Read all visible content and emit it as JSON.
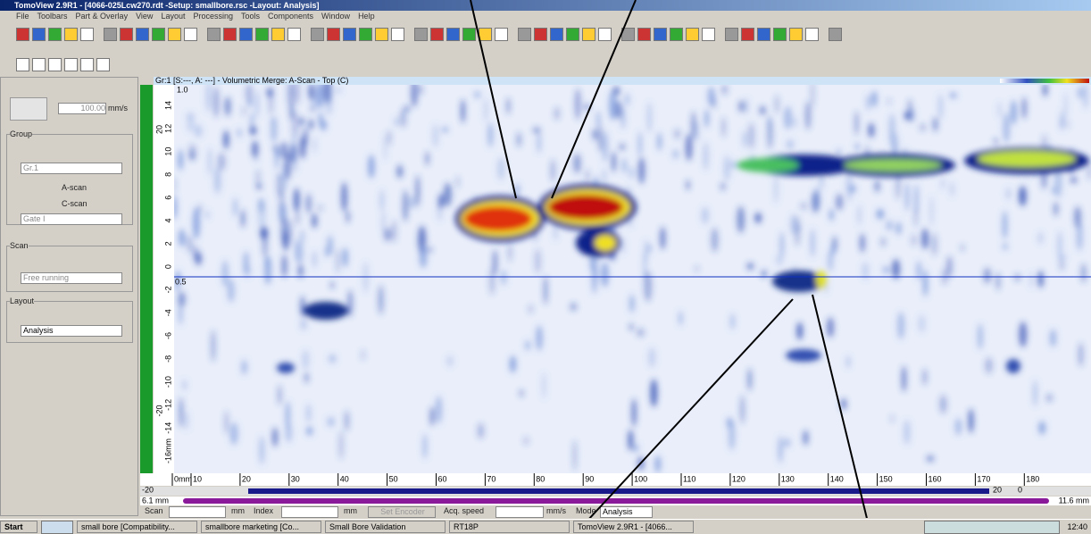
{
  "window": {
    "title": "TomoView 2.9R1 - [4066-025Lcw270.rdt -Setup: smallbore.rsc -Layout: Analysis]"
  },
  "menu": [
    "File",
    "Toolbars",
    "Part & Overlay",
    "View",
    "Layout",
    "Processing",
    "Tools",
    "Components",
    "Window",
    "Help"
  ],
  "left_panel": {
    "speed": "100.00",
    "speed_unit": "mm/s",
    "group_title": "Group",
    "group": "Gr.1",
    "a_scan": "A-scan",
    "c_scan": "C-scan",
    "gate": "Gate I",
    "scan_title": "Scan",
    "scan_mode": "Free running",
    "layout_title": "Layout",
    "layout": "Analysis"
  },
  "view": {
    "title": "Gr:1 [S:---, A: ---] - Volumetric Merge: A-Scan - Top (C)",
    "top_marker": "1.0",
    "cursor_marker": "0.5",
    "left_ruler": [
      "14",
      "12",
      "10",
      "8",
      "6",
      "4",
      "2",
      "0",
      "-2",
      "-4",
      "-6",
      "-8",
      "-10",
      "-12",
      "-14",
      "-16mm"
    ],
    "left_ruler_outer": [
      "20",
      "-20"
    ],
    "bottom_ruler": [
      "0mm",
      "10",
      "20",
      "30",
      "40",
      "50",
      "60",
      "70",
      "80",
      "90",
      "100",
      "110",
      "120",
      "130",
      "140",
      "150",
      "160",
      "170",
      "180"
    ],
    "index_scale": [
      "-20",
      "20",
      "0"
    ],
    "position_left": "6.1 mm",
    "position_right": "11.6 mm"
  },
  "status_bar": {
    "scan_label": "Scan",
    "scan_unit": "mm",
    "index_label": "Index",
    "index_unit": "mm",
    "encoder_button": "Set Encoder",
    "acq_speed_label": "Acq. speed",
    "acq_speed_unit": "mm/s",
    "mode_label": "Mode",
    "mode": "Analysis"
  },
  "taskbar": {
    "start": "Start",
    "items": [
      "small bore [Compatibility...",
      "smallbore marketing [Co...",
      "Small Bore Validation",
      "RT18P",
      "TomoView 2.9R1 - [4066..."
    ],
    "clock": "12:40"
  }
}
